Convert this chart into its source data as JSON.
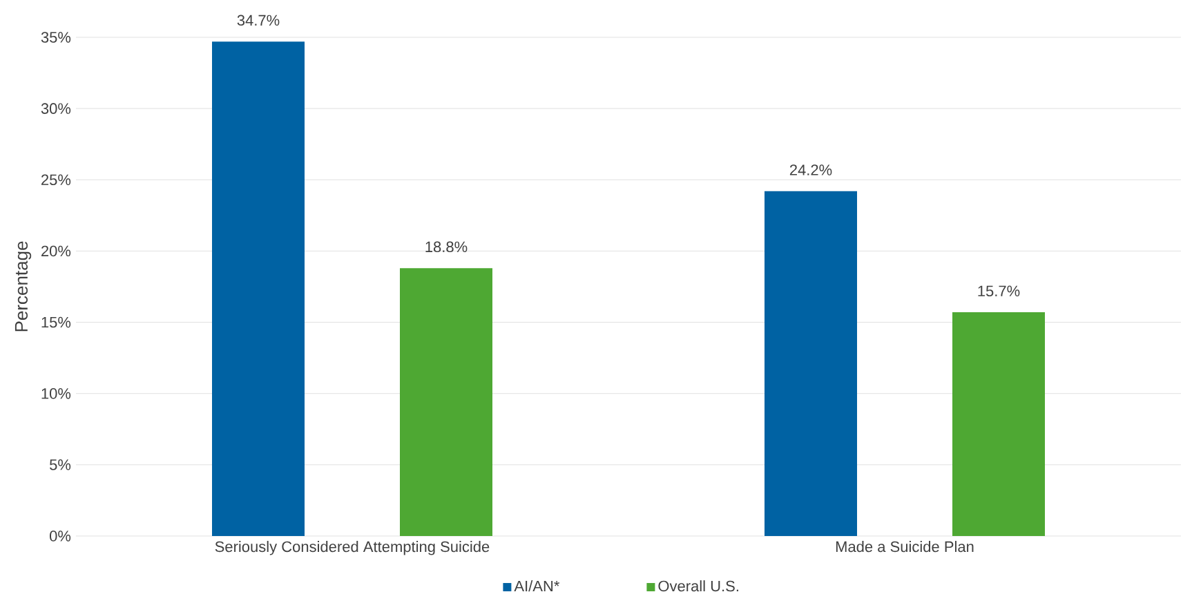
{
  "chart_data": {
    "type": "bar",
    "ylabel": "Percentage",
    "categories": [
      "Seriously Considered Attempting Suicide",
      "Made a Suicide Plan"
    ],
    "series": [
      {
        "name": "AI/AN*",
        "color": "#0062a3",
        "values": [
          34.7,
          24.2
        ],
        "value_labels": [
          "34.7%",
          "24.2%"
        ]
      },
      {
        "name": "Overall U.S.",
        "color": "#4ea833",
        "values": [
          18.8,
          15.7
        ],
        "value_labels": [
          "18.8%",
          "15.7%"
        ]
      }
    ],
    "ylim": [
      0,
      35
    ],
    "yticks": [
      {
        "value": 0,
        "label": "0%"
      },
      {
        "value": 5,
        "label": "5%"
      },
      {
        "value": 10,
        "label": "10%"
      },
      {
        "value": 15,
        "label": "15%"
      },
      {
        "value": 20,
        "label": "20%"
      },
      {
        "value": 25,
        "label": "25%"
      },
      {
        "value": 30,
        "label": "30%"
      },
      {
        "value": 35,
        "label": "35%"
      }
    ],
    "grid": "y",
    "legend": "bottom"
  }
}
